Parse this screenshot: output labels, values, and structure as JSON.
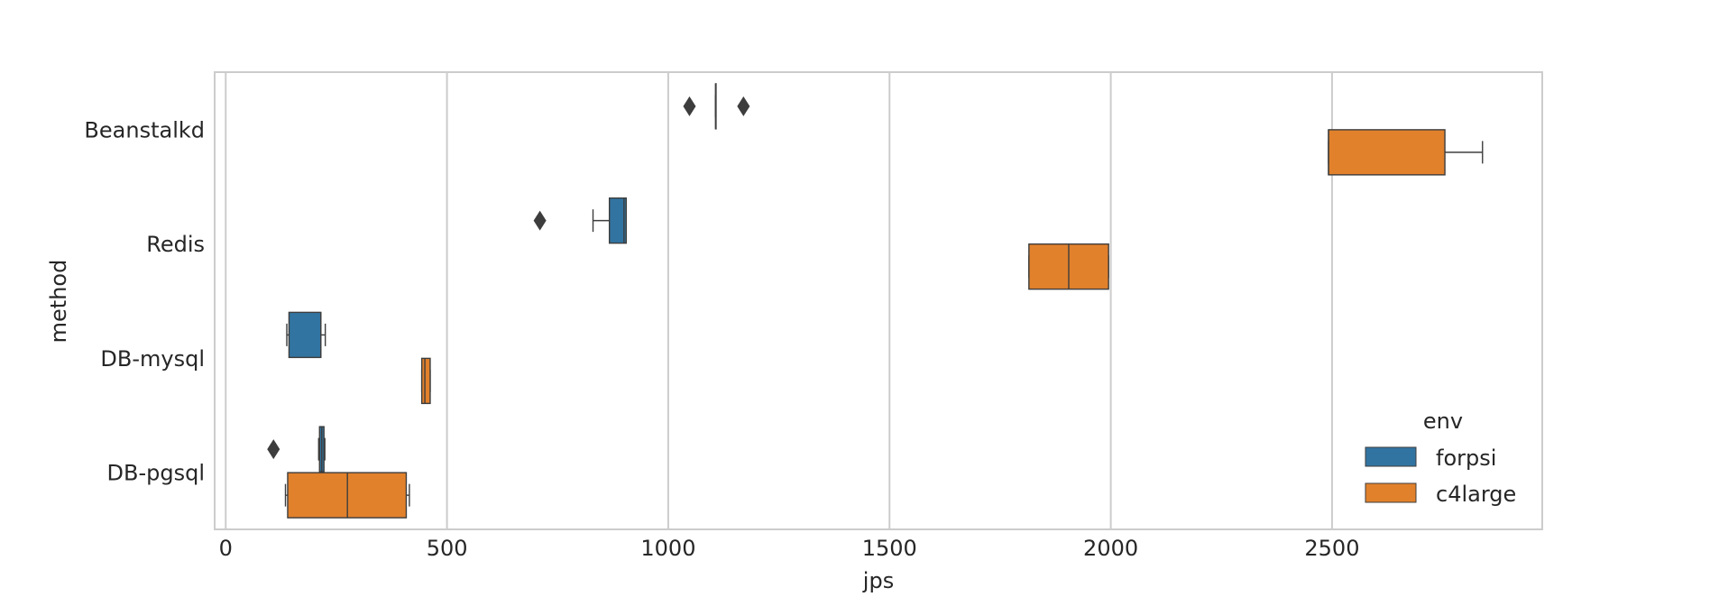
{
  "chart_data": {
    "type": "boxplot",
    "orientation": "horizontal",
    "title": "",
    "xlabel": "jps",
    "ylabel": "method",
    "categories": [
      "Beanstalkd",
      "Redis",
      "DB-mysql",
      "DB-pgsql"
    ],
    "xlim": [
      -25,
      2975
    ],
    "xticks": [
      0,
      500,
      1000,
      1500,
      2000,
      2500
    ],
    "xtick_labels": [
      "0",
      "500",
      "1000",
      "1500",
      "2000",
      "2500"
    ],
    "grid": "vertical",
    "legend": {
      "title": "env",
      "placement": "lower-right",
      "entries": [
        "forpsi",
        "c4large"
      ]
    },
    "series": [
      {
        "name": "forpsi",
        "color": "#3274a1",
        "boxes": [
          {
            "category": "Beanstalkd",
            "whislo": 1107,
            "q1": 1107,
            "med": 1107,
            "q3": 1107,
            "whishi": 1107,
            "fliers": [
              1048,
              1170
            ]
          },
          {
            "category": "Redis",
            "whislo": 830,
            "q1": 867,
            "med": 900,
            "q3": 905,
            "whishi": 905,
            "fliers": [
              710
            ]
          },
          {
            "category": "DB-mysql",
            "whislo": 138,
            "q1": 143,
            "med": 215,
            "q3": 215,
            "whishi": 225,
            "fliers": []
          },
          {
            "category": "DB-pgsql",
            "whislo": 210,
            "q1": 212,
            "med": 217,
            "q3": 222,
            "whishi": 224,
            "fliers": [
              108
            ]
          }
        ]
      },
      {
        "name": "c4large",
        "color": "#e1812c",
        "boxes": [
          {
            "category": "Beanstalkd",
            "whislo": 2492,
            "q1": 2492,
            "med": 2492,
            "q3": 2755,
            "whishi": 2840,
            "fliers": []
          },
          {
            "category": "Redis",
            "whislo": 1815,
            "q1": 1815,
            "med": 1905,
            "q3": 1995,
            "whishi": 1995,
            "fliers": []
          },
          {
            "category": "DB-mysql",
            "whislo": 443,
            "q1": 443,
            "med": 450,
            "q3": 462,
            "whishi": 462,
            "fliers": []
          },
          {
            "category": "DB-pgsql",
            "whislo": 135,
            "q1": 140,
            "med": 275,
            "q3": 408,
            "whishi": 415,
            "fliers": []
          }
        ]
      }
    ]
  }
}
